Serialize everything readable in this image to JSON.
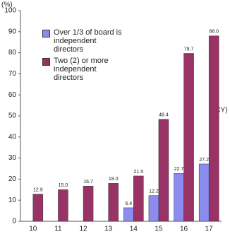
{
  "chart_data": {
    "type": "bar",
    "y_label": "(%)",
    "x_label": "(CY)",
    "categories": [
      "10",
      "11",
      "12",
      "13",
      "14",
      "15",
      "16",
      "17"
    ],
    "series": [
      {
        "name": "Over 1/3 of board is independent directors",
        "color": "#8c8cf0",
        "values": [
          null,
          null,
          null,
          null,
          6.4,
          12.2,
          22.7,
          27.2
        ],
        "value_labels": [
          null,
          null,
          null,
          null,
          "6.4",
          "12.2",
          "22.7",
          "27.2"
        ]
      },
      {
        "name": "Two (2) or more independent directors",
        "color": "#993366",
        "values": [
          12.9,
          15.0,
          16.7,
          18.0,
          21.5,
          48.4,
          79.7,
          88.0
        ],
        "value_labels": [
          "12.9",
          "15.0",
          "16.7",
          "18.0",
          "21.5",
          "48.4",
          "79.7",
          "88.0"
        ]
      }
    ],
    "ylim": [
      0,
      100
    ],
    "yticks": [
      0,
      10,
      20,
      30,
      40,
      50,
      60,
      70,
      80,
      90,
      100
    ],
    "grid": false
  }
}
